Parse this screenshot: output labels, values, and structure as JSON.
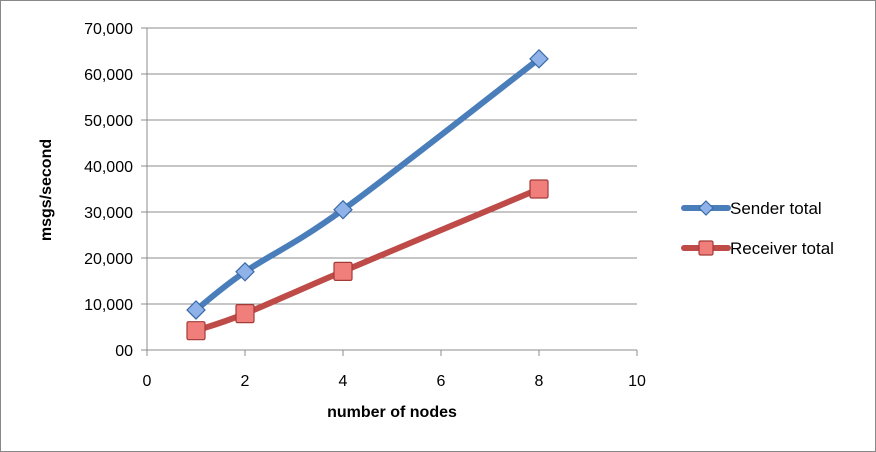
{
  "chart_data": {
    "type": "line",
    "title": "",
    "xlabel": "number of nodes",
    "ylabel": "msgs/second",
    "xlim": [
      0,
      10
    ],
    "ylim": [
      0,
      70000
    ],
    "x_ticks": [
      0,
      2,
      4,
      6,
      8,
      10
    ],
    "y_ticks": [
      0,
      10000,
      20000,
      30000,
      40000,
      50000,
      60000,
      70000
    ],
    "x_tick_labels": [
      "0",
      "2",
      "4",
      "6",
      "8",
      "10"
    ],
    "y_tick_labels": [
      "00",
      "10,000",
      "20,000",
      "30,000",
      "40,000",
      "50,000",
      "60,000",
      "70,000"
    ],
    "grid": "horizontal",
    "legend": "right",
    "series": [
      {
        "name": "Sender total",
        "color": "#4a7ebb",
        "marker": "diamond",
        "x": [
          1,
          2,
          4,
          8
        ],
        "y": [
          8700,
          17000,
          30500,
          63300
        ]
      },
      {
        "name": "Receiver total",
        "color": "#be4b48",
        "marker": "square",
        "x": [
          1,
          2,
          4,
          8
        ],
        "y": [
          4200,
          7900,
          17100,
          35000
        ]
      }
    ]
  }
}
